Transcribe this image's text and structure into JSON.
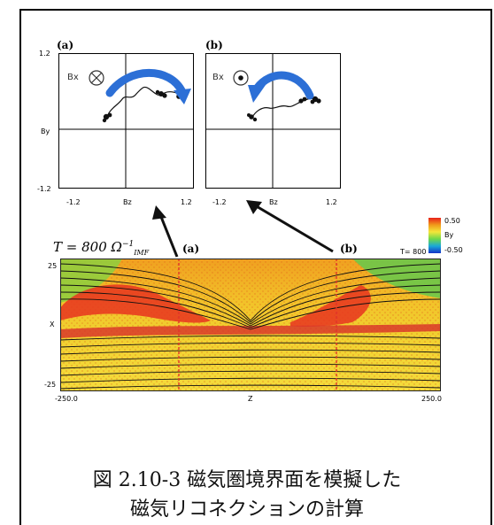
{
  "panel_a": {
    "label": "(a)",
    "field_label": "Bx",
    "ytop": "1.2",
    "ylabel": "By",
    "ybottom": "-1.2",
    "xleft": "-1.2",
    "xlabel": "Bz",
    "xright": "1.2",
    "icon": "circle-cross-icon"
  },
  "panel_b": {
    "label": "(b)",
    "field_label": "Bx",
    "xleft": "-1.2",
    "xlabel": "Bz",
    "xright": "1.2",
    "icon": "circle-dot-icon"
  },
  "sim": {
    "time_label_prefix": "T = 800 Ω",
    "time_sup": "−1",
    "time_sub": "IMF",
    "marker_a": "(a)",
    "marker_b": "(b)",
    "colorbar_max": "0.50",
    "colorbar_var": "By",
    "colorbar_min": "-0.50",
    "time_small": "T= 800",
    "y_top": "25",
    "y_mid": "X",
    "y_bottom": "-25",
    "x_left": "-250.0",
    "x_mid": "Z",
    "x_right": "250.0"
  },
  "caption": {
    "line1": "図 2.10-3 磁気圏境界面を模擬した",
    "line2": "磁気リコネクションの計算"
  },
  "colors": {
    "arrow_blue": "#2c6fd6",
    "cut_red": "#e0342a"
  }
}
